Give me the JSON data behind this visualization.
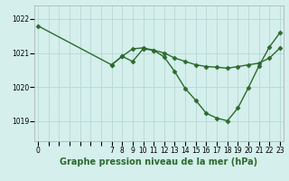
{
  "title": "Graphe pression niveau de la mer (hPa)",
  "bg_color": "#d4efec",
  "line_color": "#2d6a2d",
  "grid_color": "#b8d8d4",
  "yticks": [
    1019,
    1020,
    1021,
    1022
  ],
  "ylim": [
    1018.4,
    1022.4
  ],
  "xlim": [
    -0.3,
    23.3
  ],
  "xtick_labels": [
    "0",
    "",
    "",
    "",
    "",
    "",
    "",
    "7",
    "8",
    "9",
    "10",
    "11",
    "12",
    "13",
    "14",
    "15",
    "16",
    "17",
    "18",
    "19",
    "20",
    "21",
    "22",
    "23"
  ],
  "xtick_positions": [
    0,
    1,
    2,
    3,
    4,
    5,
    6,
    7,
    8,
    9,
    10,
    11,
    12,
    13,
    14,
    15,
    16,
    17,
    18,
    19,
    20,
    21,
    22,
    23
  ],
  "series1_x": [
    0,
    7,
    8,
    9,
    10,
    11,
    12,
    13,
    14,
    15,
    16,
    17,
    18,
    19,
    20,
    21,
    22,
    23
  ],
  "series1_y": [
    1021.8,
    1020.65,
    1020.9,
    1021.12,
    1021.15,
    1021.08,
    1021.0,
    1020.85,
    1020.75,
    1020.65,
    1020.6,
    1020.58,
    1020.55,
    1020.6,
    1020.65,
    1020.7,
    1020.85,
    1021.15
  ],
  "series2_x": [
    7,
    8,
    9,
    10,
    11,
    12,
    13,
    14,
    15,
    16,
    17,
    18,
    19,
    20,
    21,
    22,
    23
  ],
  "series2_y": [
    1020.65,
    1020.9,
    1020.75,
    1021.12,
    1021.08,
    1020.88,
    1020.45,
    1019.95,
    1019.6,
    1019.22,
    1019.08,
    1019.0,
    1019.38,
    1019.98,
    1020.62,
    1021.18,
    1021.6
  ],
  "marker": "D",
  "marker_size": 2.5,
  "line_width": 1.0,
  "title_fontsize": 7.0,
  "tick_fontsize": 5.5,
  "ylabel_color": "#2d6a2d"
}
